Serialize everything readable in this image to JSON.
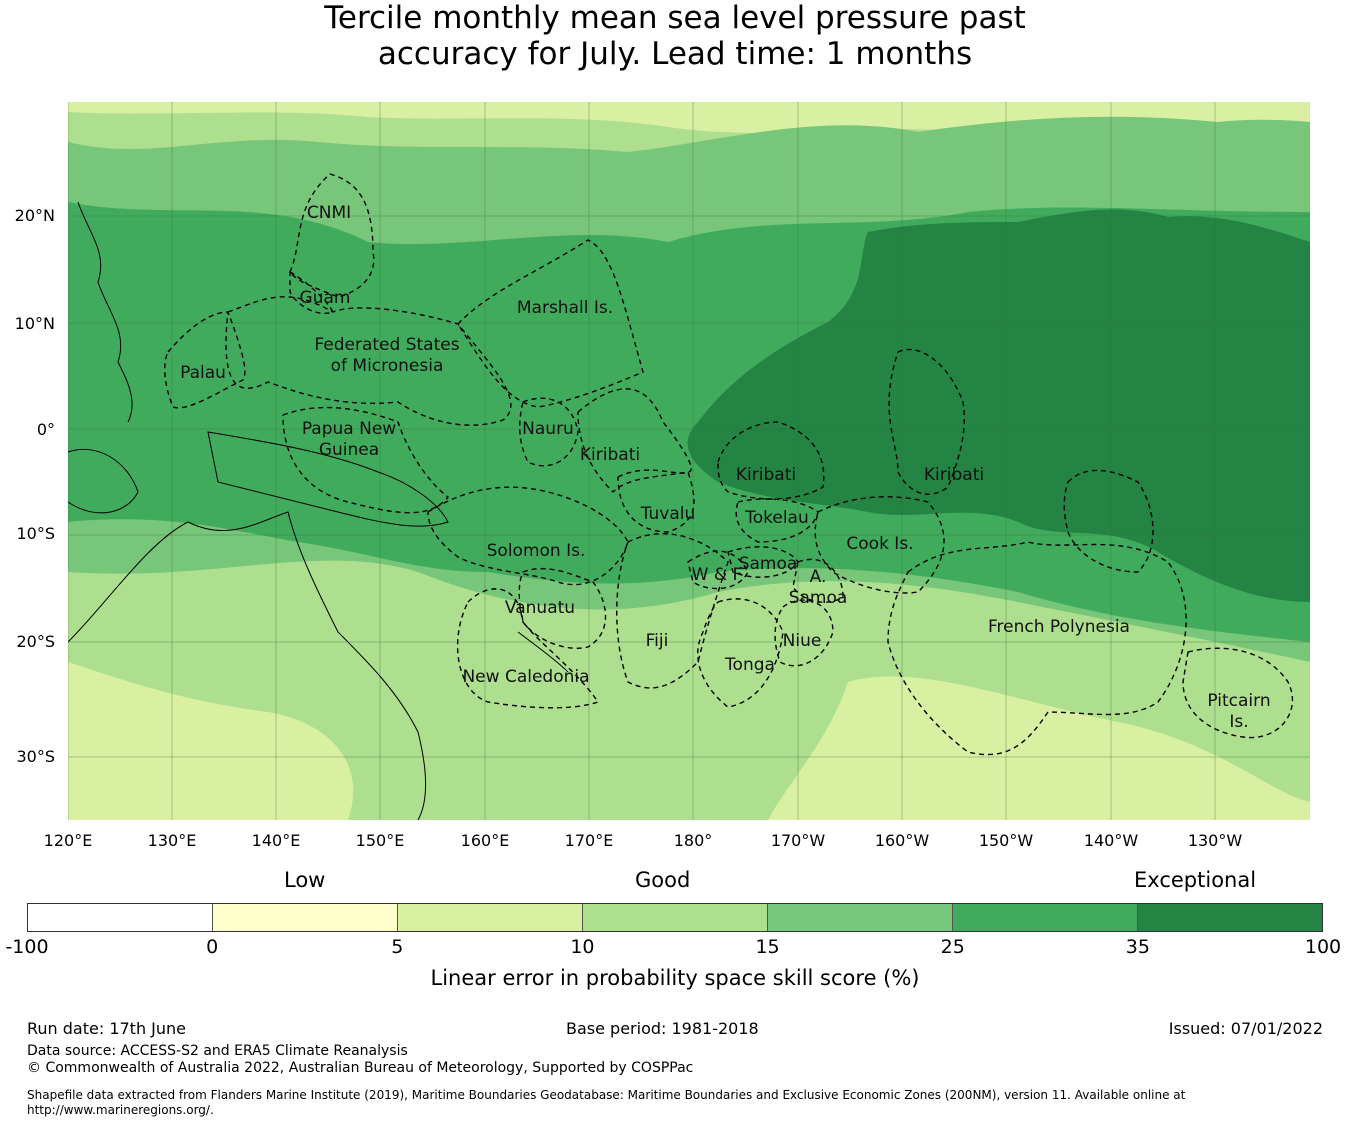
{
  "title": {
    "line1": "Tercile monthly mean sea level pressure past",
    "line2": "accuracy for July. Lead time: 1 months"
  },
  "map": {
    "lat_ticks": [
      "20°N",
      "10°N",
      "0°",
      "10°S",
      "20°S",
      "30°S"
    ],
    "lon_ticks": [
      "120°E",
      "130°E",
      "140°E",
      "150°E",
      "160°E",
      "170°E",
      "180°",
      "170°W",
      "160°W",
      "150°W",
      "140°W",
      "130°W"
    ],
    "region_labels": {
      "cnmi": "CNMI",
      "guam": "Guam",
      "marshall": "Marshall Is.",
      "fsm_1": "Federated States",
      "fsm_2": "of Micronesia",
      "palau": "Palau",
      "png_1": "Papua New",
      "png_2": "Guinea",
      "nauru": "Nauru",
      "kiribati_w": "Kiribati",
      "kiribati_c": "Kiribati",
      "kiribati_e": "Kiribati",
      "tuvalu": "Tuvalu",
      "tokelau": "Tokelau",
      "cook": "Cook Is.",
      "solomon": "Solomon Is.",
      "samoa": "Samoa",
      "wf": "W & F",
      "asamoa_1": "A.",
      "asamoa_2": "Samoa",
      "vanuatu": "Vanuatu",
      "fiji": "Fiji",
      "niue": "Niue",
      "tonga": "Tonga",
      "newcal": "New Caledonia",
      "frenchpoly": "French Polynesia",
      "pitcairn_1": "Pitcairn",
      "pitcairn_2": "Is."
    },
    "colors": {
      "sea_10_15": "#addf8e",
      "sea_5_10": "#d9f0a3",
      "sea_15_25": "#78c679",
      "sea_25_35": "#41ab5d",
      "sea_35_100": "#238443"
    }
  },
  "colorbar": {
    "category_labels": [
      "Low",
      "Good",
      "Exceptional"
    ],
    "tick_labels": [
      "-100",
      "0",
      "5",
      "10",
      "15",
      "25",
      "35",
      "100"
    ],
    "colors": [
      "#ffffff",
      "#ffffcc",
      "#d9f0a3",
      "#addf8e",
      "#78c679",
      "#41ab5d",
      "#238443"
    ],
    "axis_label": "Linear error in probability space skill score (%)"
  },
  "footer": {
    "run_date": "Run date: 17th June",
    "base_period": "Base period: 1981-2018",
    "issued": "Issued: 07/01/2022",
    "data_source": "Data source: ACCESS-S2 and ERA5 Climate Reanalysis",
    "copyright": "© Commonwealth of Australia 2022, Australian Bureau of Meteorology, Supported by COSPPac",
    "shapefile": "Shapefile data extracted from Flanders Marine Institute (2019), Maritime Boundaries Geodatabase: Maritime Boundaries and Exclusive Economic Zones (200NM), version 11. Available online at http://www.marineregions.org/."
  }
}
